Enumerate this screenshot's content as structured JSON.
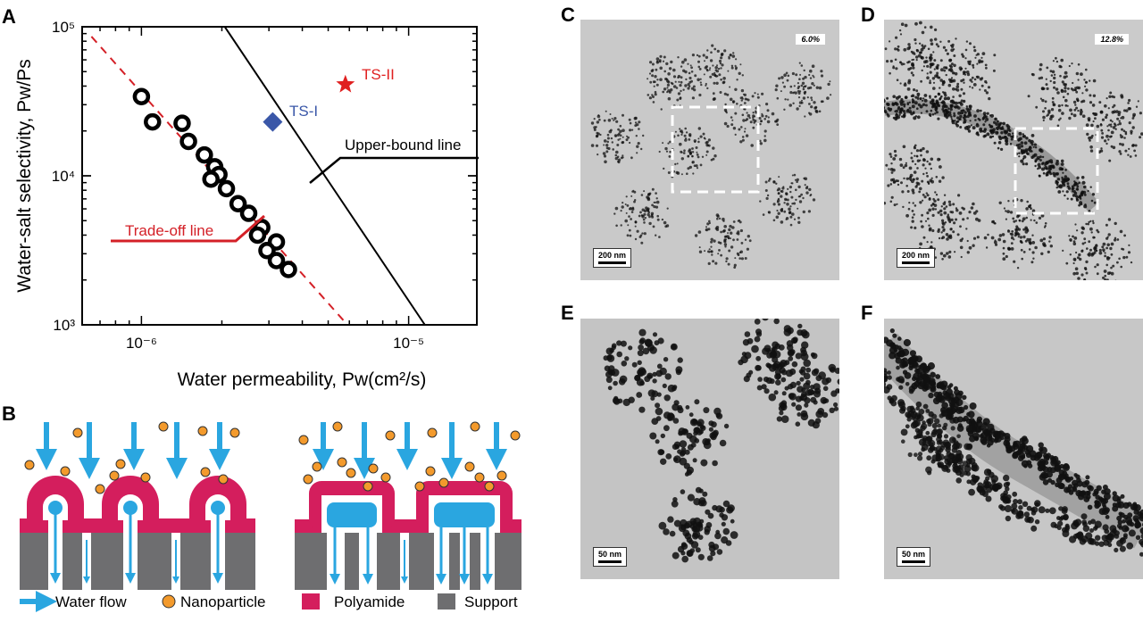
{
  "panels": {
    "A": "A",
    "B": "B",
    "C": "C",
    "D": "D",
    "E": "E",
    "F": "F"
  },
  "chart_data": {
    "type": "scatter",
    "xscale": "log",
    "yscale": "log",
    "xlim": [
      6e-07,
      1.8e-05
    ],
    "ylim": [
      1000,
      100000
    ],
    "xlabel": "Water permeability, Pw(cm²/s)",
    "ylabel": "Water-salt selectivity, Pw/Ps",
    "xticks": [
      {
        "value": 1e-06,
        "label": "10⁻⁶"
      },
      {
        "value": 1e-05,
        "label": "10⁻⁵"
      }
    ],
    "yticks": [
      {
        "value": 1000,
        "label": "10³"
      },
      {
        "value": 10000,
        "label": "10⁴"
      },
      {
        "value": 100000,
        "label": "10⁵"
      }
    ],
    "series": [
      {
        "marker": "ring",
        "color": "#000000",
        "points": [
          [
            1e-06,
            34000
          ],
          [
            1.1e-06,
            23000
          ],
          [
            1.42e-06,
            22500
          ],
          [
            1.5e-06,
            17000
          ],
          [
            1.72e-06,
            13800
          ],
          [
            1.88e-06,
            11500
          ],
          [
            1.95e-06,
            10200
          ],
          [
            1.82e-06,
            9500
          ],
          [
            2.08e-06,
            8200
          ],
          [
            2.3e-06,
            6500
          ],
          [
            2.52e-06,
            5600
          ],
          [
            2.82e-06,
            4500
          ],
          [
            2.72e-06,
            4000
          ],
          [
            3.2e-06,
            3600
          ],
          [
            2.95e-06,
            3150
          ],
          [
            3.2e-06,
            2700
          ],
          [
            3.55e-06,
            2350
          ]
        ]
      },
      {
        "name": "TS-I",
        "marker": "diamond",
        "color": "#3a57a8",
        "points": [
          [
            3.1e-06,
            23000
          ]
        ]
      },
      {
        "name": "TS-II",
        "marker": "star",
        "color": "#e02020",
        "points": [
          [
            5.8e-06,
            41000
          ]
        ]
      }
    ],
    "lines": [
      {
        "name": "Trade-off line",
        "color": "#d42027",
        "style": "dashed",
        "points": [
          [
            6.5e-07,
            86000
          ],
          [
            5.9e-06,
            1000
          ]
        ]
      },
      {
        "name": "Upper-bound line",
        "color": "#000000",
        "style": "solid",
        "points": [
          [
            2.05e-06,
            100000
          ],
          [
            1.15e-05,
            1000
          ]
        ]
      }
    ],
    "annotations": [
      {
        "text": "Trade-off line",
        "color": "#d42027"
      },
      {
        "text": "Upper-bound line",
        "color": "#000000"
      },
      {
        "text": "TS-I",
        "color": "#3a57a8"
      },
      {
        "text": "TS-II",
        "color": "#e02020"
      }
    ]
  },
  "schematic_legend": {
    "water_flow": "Water flow",
    "nanoparticle": "Nanoparticle",
    "polyamide": "Polyamide",
    "support": "Support"
  },
  "colors": {
    "water": "#2aa6e0",
    "nanoparticle": "#f39a2c",
    "polyamide": "#d41e5d",
    "support": "#6e6e70"
  },
  "micrographs": {
    "C": {
      "label": "6.0%",
      "scale": "200 nm"
    },
    "D": {
      "label": "12.8%",
      "scale": "200 nm"
    },
    "E": {
      "scale": "50 nm"
    },
    "F": {
      "scale": "50 nm"
    }
  }
}
